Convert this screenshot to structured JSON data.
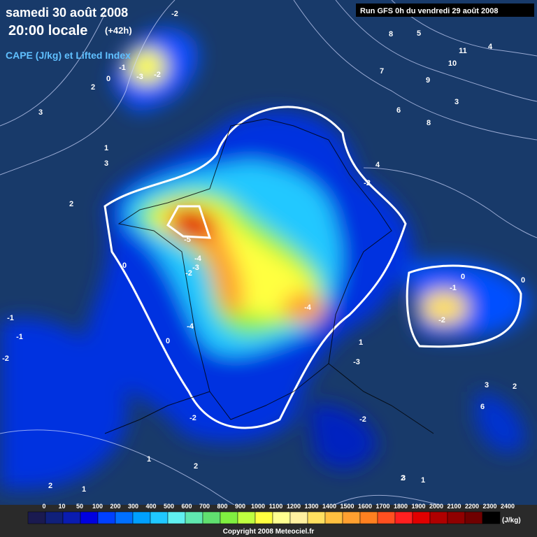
{
  "header": {
    "date": "samedi 30 août 2008",
    "time": "20:00 locale",
    "offset": "(+42h)",
    "product": "CAPE (J/kg) et Lifted Index"
  },
  "run_info": "Run GFS 0h du vendredi 29 août 2008",
  "legend": {
    "unit": "(J/kg)",
    "ticks": [
      0,
      10,
      50,
      100,
      200,
      300,
      400,
      500,
      600,
      700,
      800,
      900,
      1000,
      1100,
      1200,
      1300,
      1400,
      1500,
      1600,
      1700,
      1800,
      1900,
      2000,
      2100,
      2200,
      2300,
      2400
    ],
    "colors": [
      "#1a1a50",
      "#10207a",
      "#0a1cb0",
      "#0000e0",
      "#0040ff",
      "#0070ff",
      "#00a0ff",
      "#20c8ff",
      "#60f0f0",
      "#60e8b0",
      "#60e070",
      "#80f040",
      "#c0ff40",
      "#ffff40",
      "#ffff90",
      "#fff0a0",
      "#ffe060",
      "#ffc040",
      "#ffa030",
      "#ff8020",
      "#ff5020",
      "#ff2020",
      "#e00000",
      "#b00000",
      "#900000",
      "#700000",
      "#000000"
    ]
  },
  "contour_labels": [
    "-2",
    "2",
    "-1",
    "0",
    "-3",
    "-2",
    "3",
    "1",
    "3",
    "2",
    "2",
    "0",
    "-5",
    "-4",
    "-3",
    "-2",
    "-4",
    "-4",
    "0",
    "-1",
    "-2",
    "0",
    "0",
    "-1",
    "-1",
    "-2",
    "-3",
    "1",
    "-2",
    "-2",
    "1",
    "2",
    "1",
    "3",
    "4",
    "2",
    "3",
    "2",
    "6",
    "8",
    "5",
    "7",
    "9",
    "10",
    "11",
    "4",
    "6",
    "8",
    "3",
    "1",
    "-2"
  ],
  "copyright": "Copyright 2008 Meteociel.fr"
}
